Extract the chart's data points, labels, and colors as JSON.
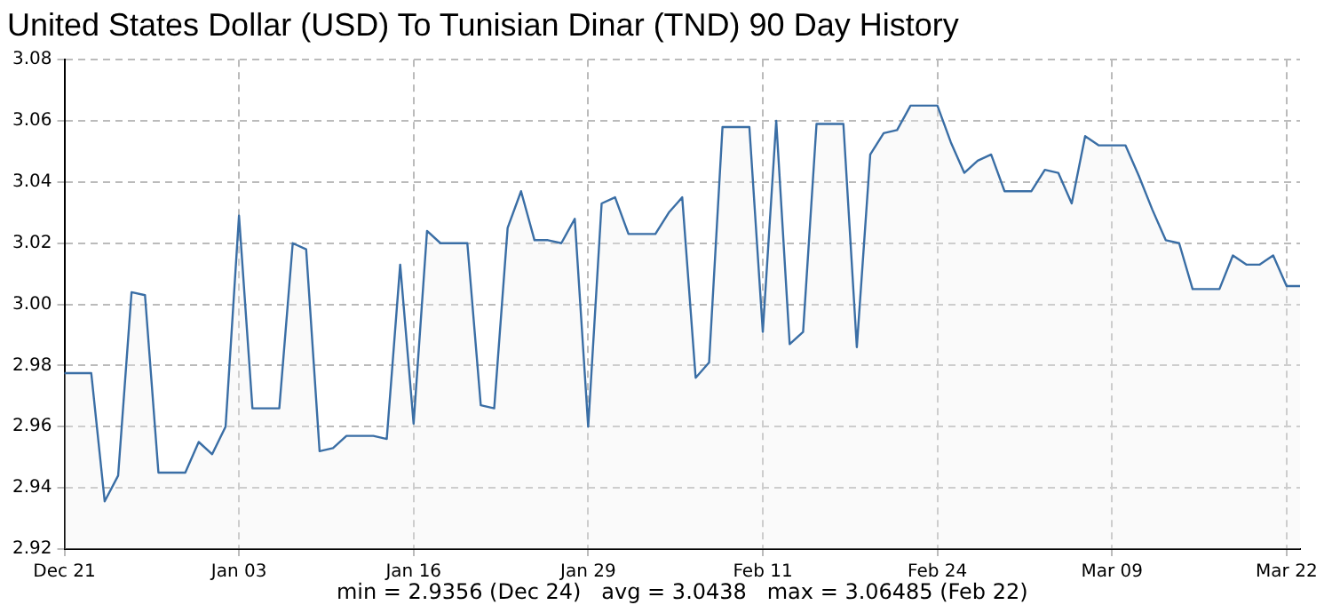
{
  "chart_data": {
    "type": "area",
    "title": "United States Dollar (USD) To Tunisian Dinar (TND) 90 Day History",
    "annotations": [
      "min = 2.9356 (Dec 24)   avg = 3.0438   max = 3.06485 (Feb 22)"
    ],
    "categories": [
      "Dec 21",
      null,
      null,
      null,
      null,
      null,
      null,
      null,
      null,
      null,
      null,
      null,
      null,
      "Jan 03",
      null,
      null,
      null,
      null,
      null,
      null,
      null,
      null,
      null,
      null,
      null,
      null,
      "Jan 16",
      null,
      null,
      null,
      null,
      null,
      null,
      null,
      null,
      null,
      null,
      null,
      null,
      "Jan 29",
      null,
      null,
      null,
      null,
      null,
      null,
      null,
      null,
      null,
      null,
      null,
      null,
      "Feb 11",
      null,
      null,
      null,
      null,
      null,
      null,
      null,
      null,
      null,
      null,
      null,
      null,
      "Feb 24",
      null,
      null,
      null,
      null,
      null,
      null,
      null,
      null,
      null,
      null,
      null,
      null,
      "Mar 09",
      null,
      null,
      null,
      null,
      null,
      null,
      null,
      null,
      null,
      null,
      null,
      null,
      "Mar 22",
      null
    ],
    "series": [
      {
        "color": "#3a6ea5",
        "values": [
          2.9775,
          2.9775,
          2.9775,
          2.9356,
          2.944,
          3.004,
          3.003,
          2.945,
          2.945,
          2.945,
          2.955,
          2.951,
          2.96,
          3.029,
          2.966,
          2.966,
          2.966,
          3.02,
          3.018,
          2.952,
          2.953,
          2.957,
          2.957,
          2.957,
          2.956,
          3.013,
          2.961,
          3.024,
          3.02,
          3.02,
          3.02,
          2.967,
          2.966,
          3.025,
          3.037,
          3.021,
          3.021,
          3.02,
          3.028,
          2.96,
          3.033,
          3.035,
          3.023,
          3.023,
          3.023,
          3.03,
          3.035,
          2.976,
          2.981,
          3.058,
          3.058,
          3.058,
          2.991,
          3.06,
          2.987,
          2.991,
          3.059,
          3.059,
          3.059,
          2.986,
          3.049,
          3.056,
          3.057,
          3.065,
          3.065,
          3.065,
          3.053,
          3.043,
          3.047,
          3.049,
          3.037,
          3.037,
          3.037,
          3.044,
          3.043,
          3.033,
          3.055,
          3.052,
          3.052,
          3.052,
          3.042,
          3.031,
          3.021,
          3.02,
          3.005,
          3.005,
          3.005,
          3.016,
          3.013,
          3.013,
          3.016,
          3.006,
          3.006
        ]
      }
    ],
    "ylim": [
      2.92,
      3.08
    ],
    "yticks": [
      {
        "value": 2.92,
        "label": "2.92"
      },
      {
        "value": 2.94,
        "label": "2.94"
      },
      {
        "value": 2.96,
        "label": "2.96"
      },
      {
        "value": 2.98,
        "label": "2.98"
      },
      {
        "value": 3,
        "label": "3.00"
      },
      {
        "value": 3.02,
        "label": "3.02"
      },
      {
        "value": 3.04,
        "label": "3.04"
      },
      {
        "value": 3.06,
        "label": "3.06"
      },
      {
        "value": 3.08,
        "label": "3.08"
      }
    ],
    "grid": true,
    "legend": false,
    "marker": "none",
    "line_style": "solid"
  }
}
